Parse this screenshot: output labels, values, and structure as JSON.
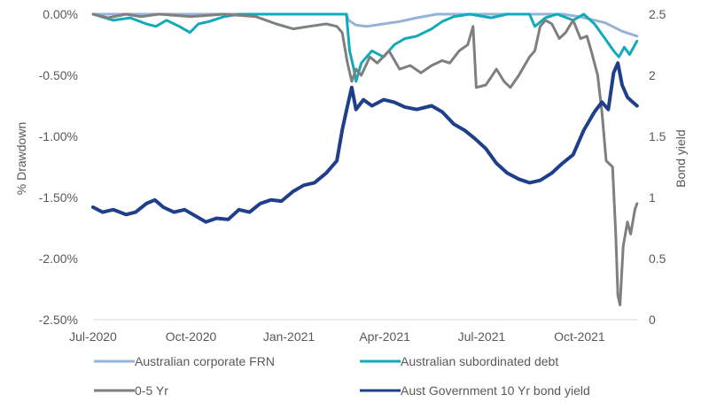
{
  "chart_data": {
    "type": "line",
    "title": "",
    "xlabel": "",
    "ylabel": "% Drawdown",
    "y2label": "Bond yield",
    "grid": false,
    "legend_position": "bottom",
    "x_ticks": [
      "Jul-2020",
      "Oct-2020",
      "Jan-2021",
      "Apr-2021",
      "Jul-2021",
      "Oct-2021"
    ],
    "y_ticks": [
      "0.00%",
      "-0.50%",
      "-1.00%",
      "-1.50%",
      "-2.00%",
      "-2.50%"
    ],
    "y2_ticks": [
      "2.5",
      "2",
      "1.5",
      "1",
      "0.5",
      "0"
    ],
    "ylim": [
      -2.5,
      0
    ],
    "y2lim": [
      0,
      2.5
    ],
    "xlim": [
      "2020-07-01",
      "2021-11-25"
    ],
    "series": [
      {
        "name": "Australian corporate FRN",
        "axis": "left",
        "color": "#95b3d7",
        "points": [
          [
            "2020-07-01",
            0.0
          ],
          [
            "2020-08-01",
            0.0
          ],
          [
            "2020-09-01",
            0.0
          ],
          [
            "2020-10-01",
            0.0
          ],
          [
            "2020-11-01",
            0.0
          ],
          [
            "2020-12-01",
            0.0
          ],
          [
            "2021-01-01",
            0.0
          ],
          [
            "2021-02-01",
            0.0
          ],
          [
            "2021-02-24",
            0.0
          ],
          [
            "2021-02-26",
            -0.05
          ],
          [
            "2021-03-05",
            -0.09
          ],
          [
            "2021-03-15",
            -0.1
          ],
          [
            "2021-03-31",
            -0.08
          ],
          [
            "2021-04-15",
            -0.06
          ],
          [
            "2021-05-01",
            -0.03
          ],
          [
            "2021-05-20",
            0.0
          ],
          [
            "2021-06-15",
            0.0
          ],
          [
            "2021-07-15",
            0.0
          ],
          [
            "2021-08-15",
            0.0
          ],
          [
            "2021-09-15",
            0.0
          ],
          [
            "2021-10-01",
            -0.02
          ],
          [
            "2021-10-25",
            -0.07
          ],
          [
            "2021-11-10",
            -0.14
          ],
          [
            "2021-11-24",
            -0.18
          ]
        ]
      },
      {
        "name": "Australian subordinated debt",
        "axis": "left",
        "color": "#12a9b8",
        "points": [
          [
            "2020-07-01",
            0.0
          ],
          [
            "2020-07-20",
            -0.05
          ],
          [
            "2020-08-05",
            -0.03
          ],
          [
            "2020-08-20",
            -0.08
          ],
          [
            "2020-08-29",
            -0.1
          ],
          [
            "2020-09-08",
            -0.05
          ],
          [
            "2020-09-20",
            -0.1
          ],
          [
            "2020-09-30",
            -0.15
          ],
          [
            "2020-10-08",
            -0.08
          ],
          [
            "2020-10-18",
            -0.06
          ],
          [
            "2020-11-01",
            -0.02
          ],
          [
            "2020-11-15",
            0.0
          ],
          [
            "2020-12-15",
            0.0
          ],
          [
            "2021-01-15",
            0.0
          ],
          [
            "2021-02-15",
            0.0
          ],
          [
            "2021-02-24",
            0.0
          ],
          [
            "2021-02-27",
            -0.3
          ],
          [
            "2021-03-03",
            -0.45
          ],
          [
            "2021-03-05",
            -0.55
          ],
          [
            "2021-03-10",
            -0.4
          ],
          [
            "2021-03-20",
            -0.3
          ],
          [
            "2021-03-31",
            -0.35
          ],
          [
            "2021-04-10",
            -0.25
          ],
          [
            "2021-04-20",
            -0.2
          ],
          [
            "2021-05-01",
            -0.18
          ],
          [
            "2021-05-15",
            -0.12
          ],
          [
            "2021-05-25",
            -0.06
          ],
          [
            "2021-06-05",
            -0.02
          ],
          [
            "2021-06-20",
            0.0
          ],
          [
            "2021-07-10",
            -0.03
          ],
          [
            "2021-07-25",
            0.0
          ],
          [
            "2021-08-15",
            0.0
          ],
          [
            "2021-08-20",
            -0.1
          ],
          [
            "2021-08-30",
            -0.03
          ],
          [
            "2021-09-10",
            0.0
          ],
          [
            "2021-09-25",
            -0.05
          ],
          [
            "2021-10-05",
            0.0
          ],
          [
            "2021-10-15",
            -0.08
          ],
          [
            "2021-10-25",
            -0.2
          ],
          [
            "2021-11-02",
            -0.3
          ],
          [
            "2021-11-07",
            -0.35
          ],
          [
            "2021-11-12",
            -0.27
          ],
          [
            "2021-11-17",
            -0.33
          ],
          [
            "2021-11-24",
            -0.22
          ]
        ]
      },
      {
        "name": "0-5 Yr",
        "axis": "left",
        "color": "#7f7f7f",
        "points": [
          [
            "2020-07-01",
            0.0
          ],
          [
            "2020-07-15",
            -0.03
          ],
          [
            "2020-08-01",
            0.0
          ],
          [
            "2020-08-15",
            -0.02
          ],
          [
            "2020-09-01",
            0.0
          ],
          [
            "2020-10-01",
            -0.02
          ],
          [
            "2020-11-01",
            0.0
          ],
          [
            "2020-12-01",
            -0.02
          ],
          [
            "2020-12-20",
            -0.08
          ],
          [
            "2021-01-05",
            -0.12
          ],
          [
            "2021-01-20",
            -0.1
          ],
          [
            "2021-02-05",
            -0.08
          ],
          [
            "2021-02-15",
            -0.1
          ],
          [
            "2021-02-20",
            -0.15
          ],
          [
            "2021-02-25",
            -0.4
          ],
          [
            "2021-03-01",
            -0.55
          ],
          [
            "2021-03-05",
            -0.45
          ],
          [
            "2021-03-10",
            -0.5
          ],
          [
            "2021-03-18",
            -0.35
          ],
          [
            "2021-03-25",
            -0.4
          ],
          [
            "2021-04-05",
            -0.3
          ],
          [
            "2021-04-15",
            -0.45
          ],
          [
            "2021-04-25",
            -0.42
          ],
          [
            "2021-05-05",
            -0.48
          ],
          [
            "2021-05-15",
            -0.42
          ],
          [
            "2021-05-25",
            -0.38
          ],
          [
            "2021-06-01",
            -0.4
          ],
          [
            "2021-06-10",
            -0.3
          ],
          [
            "2021-06-18",
            -0.25
          ],
          [
            "2021-06-23",
            -0.1
          ],
          [
            "2021-06-26",
            -0.6
          ],
          [
            "2021-07-05",
            -0.58
          ],
          [
            "2021-07-15",
            -0.45
          ],
          [
            "2021-07-22",
            -0.55
          ],
          [
            "2021-07-28",
            -0.6
          ],
          [
            "2021-08-05",
            -0.5
          ],
          [
            "2021-08-15",
            -0.35
          ],
          [
            "2021-08-20",
            -0.3
          ],
          [
            "2021-08-25",
            -0.1
          ],
          [
            "2021-08-30",
            -0.05
          ],
          [
            "2021-09-05",
            -0.08
          ],
          [
            "2021-09-12",
            -0.2
          ],
          [
            "2021-09-18",
            -0.15
          ],
          [
            "2021-09-25",
            -0.05
          ],
          [
            "2021-10-02",
            -0.2
          ],
          [
            "2021-10-08",
            -0.18
          ],
          [
            "2021-10-12",
            -0.3
          ],
          [
            "2021-10-18",
            -0.5
          ],
          [
            "2021-10-22",
            -0.8
          ],
          [
            "2021-10-26",
            -1.2
          ],
          [
            "2021-11-01",
            -1.25
          ],
          [
            "2021-11-04",
            -1.8
          ],
          [
            "2021-11-06",
            -2.3
          ],
          [
            "2021-11-08",
            -2.38
          ],
          [
            "2021-11-11",
            -1.9
          ],
          [
            "2021-11-15",
            -1.7
          ],
          [
            "2021-11-18",
            -1.8
          ],
          [
            "2021-11-22",
            -1.6
          ],
          [
            "2021-11-24",
            -1.55
          ]
        ]
      },
      {
        "name": "Aust Government 10 Yr bond yield",
        "axis": "right",
        "color": "#1f3f8a",
        "points": [
          [
            "2020-07-01",
            0.92
          ],
          [
            "2020-07-10",
            0.88
          ],
          [
            "2020-07-20",
            0.9
          ],
          [
            "2020-08-01",
            0.86
          ],
          [
            "2020-08-10",
            0.88
          ],
          [
            "2020-08-20",
            0.95
          ],
          [
            "2020-08-28",
            0.98
          ],
          [
            "2020-09-05",
            0.92
          ],
          [
            "2020-09-15",
            0.88
          ],
          [
            "2020-09-25",
            0.9
          ],
          [
            "2020-10-05",
            0.85
          ],
          [
            "2020-10-15",
            0.8
          ],
          [
            "2020-10-25",
            0.83
          ],
          [
            "2020-11-05",
            0.82
          ],
          [
            "2020-11-15",
            0.9
          ],
          [
            "2020-11-25",
            0.88
          ],
          [
            "2020-12-05",
            0.95
          ],
          [
            "2020-12-15",
            0.98
          ],
          [
            "2020-12-25",
            0.97
          ],
          [
            "2021-01-05",
            1.05
          ],
          [
            "2021-01-15",
            1.1
          ],
          [
            "2021-01-25",
            1.12
          ],
          [
            "2021-02-05",
            1.2
          ],
          [
            "2021-02-15",
            1.3
          ],
          [
            "2021-02-20",
            1.55
          ],
          [
            "2021-02-25",
            1.75
          ],
          [
            "2021-03-01",
            1.9
          ],
          [
            "2021-03-05",
            1.72
          ],
          [
            "2021-03-12",
            1.8
          ],
          [
            "2021-03-20",
            1.75
          ],
          [
            "2021-03-31",
            1.8
          ],
          [
            "2021-04-10",
            1.78
          ],
          [
            "2021-04-20",
            1.74
          ],
          [
            "2021-05-01",
            1.72
          ],
          [
            "2021-05-15",
            1.75
          ],
          [
            "2021-05-25",
            1.7
          ],
          [
            "2021-06-05",
            1.6
          ],
          [
            "2021-06-15",
            1.55
          ],
          [
            "2021-06-25",
            1.48
          ],
          [
            "2021-07-05",
            1.4
          ],
          [
            "2021-07-15",
            1.28
          ],
          [
            "2021-07-25",
            1.2
          ],
          [
            "2021-08-05",
            1.15
          ],
          [
            "2021-08-15",
            1.12
          ],
          [
            "2021-08-25",
            1.14
          ],
          [
            "2021-09-05",
            1.2
          ],
          [
            "2021-09-15",
            1.28
          ],
          [
            "2021-09-25",
            1.35
          ],
          [
            "2021-10-05",
            1.55
          ],
          [
            "2021-10-15",
            1.7
          ],
          [
            "2021-10-22",
            1.78
          ],
          [
            "2021-10-28",
            1.72
          ],
          [
            "2021-11-02",
            2.02
          ],
          [
            "2021-11-06",
            2.1
          ],
          [
            "2021-11-10",
            1.92
          ],
          [
            "2021-11-15",
            1.82
          ],
          [
            "2021-11-20",
            1.78
          ],
          [
            "2021-11-24",
            1.75
          ]
        ]
      }
    ]
  }
}
